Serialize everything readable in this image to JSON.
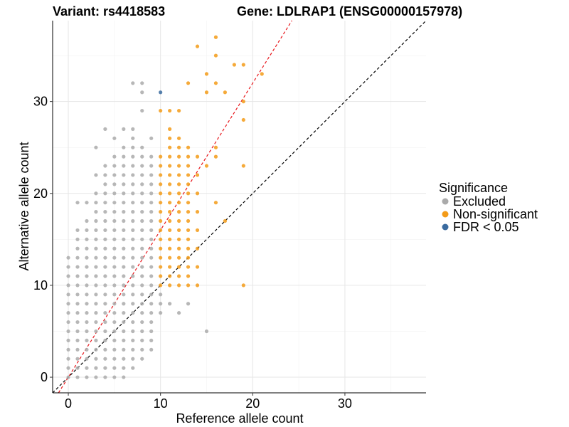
{
  "chart_data": {
    "type": "scatter",
    "title_left": "Variant: rs4418583",
    "title_right": "Gene: LDLRAP1 (ENSG00000157978)",
    "xlabel": "Reference allele count",
    "ylabel": "Alternative allele count",
    "xlim": [
      -1.7,
      38.8
    ],
    "ylim": [
      -1.7,
      38.8
    ],
    "x_ticks": [
      0,
      10,
      20,
      30
    ],
    "y_ticks": [
      0,
      10,
      20,
      30
    ],
    "x_minor_ticks": [
      5,
      15,
      25,
      35
    ],
    "y_minor_ticks": [
      5,
      15,
      25,
      35
    ],
    "grid": true,
    "legend": {
      "title": "Significance",
      "position": "right",
      "entries": [
        {
          "label": "Excluded",
          "color": "#AAAAAA"
        },
        {
          "label": "Non-significant",
          "color": "#F39B18"
        },
        {
          "label": "FDR < 0.05",
          "color": "#3A6B9F"
        }
      ]
    },
    "reference_lines": [
      {
        "name": "identity",
        "slope": 1.0,
        "intercept": 0,
        "color": "#000000",
        "dash": "dashed"
      },
      {
        "name": "fit",
        "slope": 1.6,
        "intercept": 0,
        "color": "#E8161B",
        "dash": "dashed"
      }
    ],
    "series": [
      {
        "color": "#AAAAAA",
        "points": [
          [
            0,
            0
          ],
          [
            0,
            1
          ],
          [
            0,
            2
          ],
          [
            0,
            3
          ],
          [
            0,
            4
          ],
          [
            0,
            5
          ],
          [
            0,
            6
          ],
          [
            0,
            7
          ],
          [
            0,
            8
          ],
          [
            0,
            9
          ],
          [
            0,
            10
          ],
          [
            0,
            11
          ],
          [
            0,
            12
          ],
          [
            0,
            13
          ],
          [
            1,
            0
          ],
          [
            1,
            1
          ],
          [
            1,
            2
          ],
          [
            1,
            3
          ],
          [
            1,
            4
          ],
          [
            1,
            5
          ],
          [
            1,
            6
          ],
          [
            1,
            7
          ],
          [
            1,
            8
          ],
          [
            1,
            9
          ],
          [
            1,
            10
          ],
          [
            1,
            11
          ],
          [
            1,
            12
          ],
          [
            1,
            13
          ],
          [
            1,
            14
          ],
          [
            1,
            15
          ],
          [
            1,
            16
          ],
          [
            1,
            19
          ],
          [
            2,
            0
          ],
          [
            2,
            1
          ],
          [
            2,
            2
          ],
          [
            2,
            3
          ],
          [
            2,
            4
          ],
          [
            2,
            5
          ],
          [
            2,
            6
          ],
          [
            2,
            7
          ],
          [
            2,
            8
          ],
          [
            2,
            9
          ],
          [
            2,
            10
          ],
          [
            2,
            11
          ],
          [
            2,
            12
          ],
          [
            2,
            13
          ],
          [
            2,
            14
          ],
          [
            2,
            15
          ],
          [
            2,
            16
          ],
          [
            2,
            17
          ],
          [
            2,
            19
          ],
          [
            3,
            0
          ],
          [
            3,
            1
          ],
          [
            3,
            2
          ],
          [
            3,
            3
          ],
          [
            3,
            4
          ],
          [
            3,
            5
          ],
          [
            3,
            6
          ],
          [
            3,
            7
          ],
          [
            3,
            8
          ],
          [
            3,
            9
          ],
          [
            3,
            10
          ],
          [
            3,
            11
          ],
          [
            3,
            12
          ],
          [
            3,
            13
          ],
          [
            3,
            14
          ],
          [
            3,
            15
          ],
          [
            3,
            16
          ],
          [
            3,
            17
          ],
          [
            3,
            18
          ],
          [
            3,
            19
          ],
          [
            3,
            20
          ],
          [
            3,
            22
          ],
          [
            3,
            25
          ],
          [
            4,
            0
          ],
          [
            4,
            1
          ],
          [
            4,
            2
          ],
          [
            4,
            3
          ],
          [
            4,
            4
          ],
          [
            4,
            5
          ],
          [
            4,
            6
          ],
          [
            4,
            7
          ],
          [
            4,
            8
          ],
          [
            4,
            9
          ],
          [
            4,
            10
          ],
          [
            4,
            11
          ],
          [
            4,
            12
          ],
          [
            4,
            13
          ],
          [
            4,
            14
          ],
          [
            4,
            15
          ],
          [
            4,
            16
          ],
          [
            4,
            17
          ],
          [
            4,
            18
          ],
          [
            4,
            19
          ],
          [
            4,
            20
          ],
          [
            4,
            21
          ],
          [
            4,
            22
          ],
          [
            4,
            23
          ],
          [
            4,
            27
          ],
          [
            5,
            0
          ],
          [
            5,
            1
          ],
          [
            5,
            2
          ],
          [
            5,
            3
          ],
          [
            5,
            4
          ],
          [
            5,
            5
          ],
          [
            5,
            6
          ],
          [
            5,
            7
          ],
          [
            5,
            8
          ],
          [
            5,
            9
          ],
          [
            5,
            10
          ],
          [
            5,
            11
          ],
          [
            5,
            12
          ],
          [
            5,
            13
          ],
          [
            5,
            14
          ],
          [
            5,
            15
          ],
          [
            5,
            16
          ],
          [
            5,
            17
          ],
          [
            5,
            18
          ],
          [
            5,
            19
          ],
          [
            5,
            20
          ],
          [
            5,
            21
          ],
          [
            5,
            22
          ],
          [
            5,
            23
          ],
          [
            5,
            24
          ],
          [
            5,
            26
          ],
          [
            6,
            0
          ],
          [
            6,
            1
          ],
          [
            6,
            2
          ],
          [
            6,
            3
          ],
          [
            6,
            4
          ],
          [
            6,
            5
          ],
          [
            6,
            6
          ],
          [
            6,
            7
          ],
          [
            6,
            8
          ],
          [
            6,
            9
          ],
          [
            6,
            10
          ],
          [
            6,
            11
          ],
          [
            6,
            12
          ],
          [
            6,
            13
          ],
          [
            6,
            14
          ],
          [
            6,
            15
          ],
          [
            6,
            16
          ],
          [
            6,
            17
          ],
          [
            6,
            18
          ],
          [
            6,
            19
          ],
          [
            6,
            20
          ],
          [
            6,
            21
          ],
          [
            6,
            22
          ],
          [
            6,
            23
          ],
          [
            6,
            24
          ],
          [
            6,
            25
          ],
          [
            6,
            27
          ],
          [
            7,
            1
          ],
          [
            7,
            2
          ],
          [
            7,
            3
          ],
          [
            7,
            4
          ],
          [
            7,
            5
          ],
          [
            7,
            6
          ],
          [
            7,
            7
          ],
          [
            7,
            8
          ],
          [
            7,
            9
          ],
          [
            7,
            10
          ],
          [
            7,
            11
          ],
          [
            7,
            12
          ],
          [
            7,
            13
          ],
          [
            7,
            14
          ],
          [
            7,
            15
          ],
          [
            7,
            16
          ],
          [
            7,
            17
          ],
          [
            7,
            18
          ],
          [
            7,
            19
          ],
          [
            7,
            20
          ],
          [
            7,
            21
          ],
          [
            7,
            22
          ],
          [
            7,
            23
          ],
          [
            7,
            24
          ],
          [
            7,
            25
          ],
          [
            7,
            26
          ],
          [
            7,
            27
          ],
          [
            7,
            32
          ],
          [
            8,
            2
          ],
          [
            8,
            3
          ],
          [
            8,
            4
          ],
          [
            8,
            5
          ],
          [
            8,
            6
          ],
          [
            8,
            7
          ],
          [
            8,
            8
          ],
          [
            8,
            9
          ],
          [
            8,
            10
          ],
          [
            8,
            11
          ],
          [
            8,
            12
          ],
          [
            8,
            13
          ],
          [
            8,
            14
          ],
          [
            8,
            15
          ],
          [
            8,
            16
          ],
          [
            8,
            17
          ],
          [
            8,
            18
          ],
          [
            8,
            19
          ],
          [
            8,
            20
          ],
          [
            8,
            21
          ],
          [
            8,
            22
          ],
          [
            8,
            23
          ],
          [
            8,
            24
          ],
          [
            8,
            25
          ],
          [
            8,
            29
          ],
          [
            8,
            31
          ],
          [
            8,
            32
          ],
          [
            9,
            3
          ],
          [
            9,
            4
          ],
          [
            9,
            5
          ],
          [
            9,
            6
          ],
          [
            9,
            7
          ],
          [
            9,
            8
          ],
          [
            9,
            9
          ],
          [
            9,
            10
          ],
          [
            9,
            11
          ],
          [
            9,
            12
          ],
          [
            9,
            13
          ],
          [
            9,
            14
          ],
          [
            9,
            15
          ],
          [
            9,
            16
          ],
          [
            9,
            17
          ],
          [
            9,
            18
          ],
          [
            9,
            19
          ],
          [
            9,
            20
          ],
          [
            9,
            21
          ],
          [
            9,
            22
          ],
          [
            9,
            23
          ],
          [
            9,
            24
          ],
          [
            9,
            26
          ],
          [
            10,
            7
          ],
          [
            10,
            8
          ],
          [
            10,
            9
          ],
          [
            11,
            8
          ],
          [
            12,
            7
          ],
          [
            13,
            8
          ],
          [
            15,
            5
          ]
        ]
      },
      {
        "color": "#F39B18",
        "points": [
          [
            10,
            10
          ],
          [
            10,
            11
          ],
          [
            10,
            12
          ],
          [
            10,
            13
          ],
          [
            10,
            14
          ],
          [
            10,
            15
          ],
          [
            10,
            16
          ],
          [
            10,
            17
          ],
          [
            10,
            18
          ],
          [
            10,
            19
          ],
          [
            10,
            20
          ],
          [
            10,
            21
          ],
          [
            10,
            22
          ],
          [
            10,
            23
          ],
          [
            10,
            24
          ],
          [
            10,
            29
          ],
          [
            11,
            10
          ],
          [
            11,
            11
          ],
          [
            11,
            12
          ],
          [
            11,
            13
          ],
          [
            11,
            14
          ],
          [
            11,
            15
          ],
          [
            11,
            16
          ],
          [
            11,
            17
          ],
          [
            11,
            18
          ],
          [
            11,
            19
          ],
          [
            11,
            20
          ],
          [
            11,
            21
          ],
          [
            11,
            22
          ],
          [
            11,
            23
          ],
          [
            11,
            24
          ],
          [
            11,
            25
          ],
          [
            11,
            26
          ],
          [
            11,
            27
          ],
          [
            11,
            29
          ],
          [
            12,
            10
          ],
          [
            12,
            11
          ],
          [
            12,
            12
          ],
          [
            12,
            13
          ],
          [
            12,
            14
          ],
          [
            12,
            15
          ],
          [
            12,
            16
          ],
          [
            12,
            17
          ],
          [
            12,
            18
          ],
          [
            12,
            19
          ],
          [
            12,
            20
          ],
          [
            12,
            21
          ],
          [
            12,
            22
          ],
          [
            12,
            23
          ],
          [
            12,
            24
          ],
          [
            12,
            25
          ],
          [
            12,
            26
          ],
          [
            12,
            29
          ],
          [
            13,
            10
          ],
          [
            13,
            11
          ],
          [
            13,
            12
          ],
          [
            13,
            13
          ],
          [
            13,
            14
          ],
          [
            13,
            15
          ],
          [
            13,
            16
          ],
          [
            13,
            17
          ],
          [
            13,
            18
          ],
          [
            13,
            19
          ],
          [
            13,
            20
          ],
          [
            13,
            21
          ],
          [
            13,
            22
          ],
          [
            13,
            23
          ],
          [
            13,
            24
          ],
          [
            13,
            25
          ],
          [
            13,
            32
          ],
          [
            14,
            10
          ],
          [
            14,
            12
          ],
          [
            14,
            14
          ],
          [
            14,
            16
          ],
          [
            14,
            18
          ],
          [
            14,
            20
          ],
          [
            14,
            22
          ],
          [
            14,
            24
          ],
          [
            14,
            36
          ],
          [
            15,
            23
          ],
          [
            15,
            31
          ],
          [
            15,
            33
          ],
          [
            16,
            19
          ],
          [
            16,
            24
          ],
          [
            16,
            25
          ],
          [
            16,
            32
          ],
          [
            16,
            35
          ],
          [
            16,
            37
          ],
          [
            17,
            17
          ],
          [
            17,
            31
          ],
          [
            18,
            34
          ],
          [
            19,
            10
          ],
          [
            19,
            23
          ],
          [
            19,
            28
          ],
          [
            19,
            30
          ],
          [
            19,
            34
          ],
          [
            21,
            33
          ]
        ]
      },
      {
        "color": "#3A6B9F",
        "points": [
          [
            10,
            31
          ]
        ]
      }
    ]
  }
}
